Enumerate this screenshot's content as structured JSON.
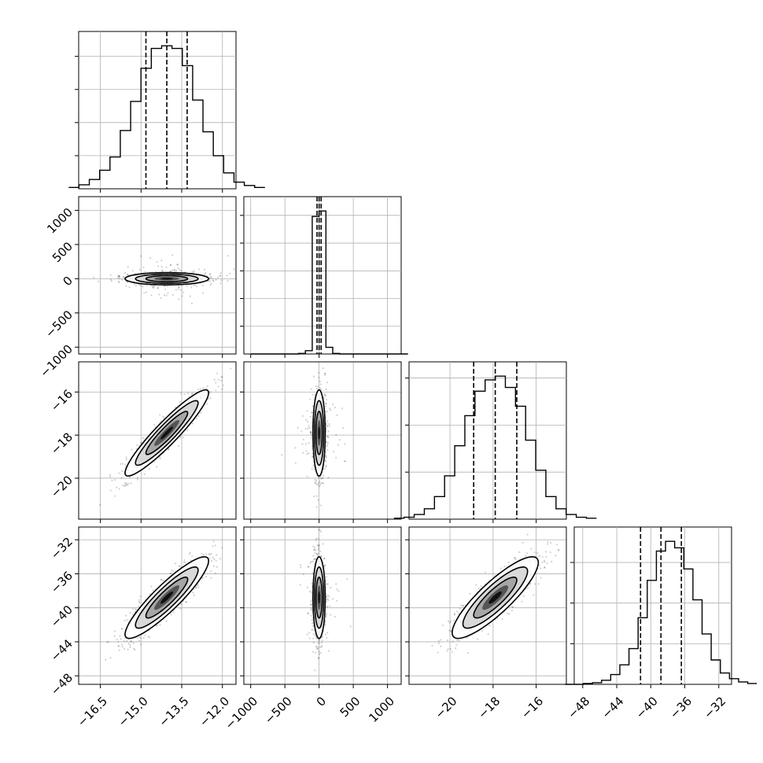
{
  "chart_data": {
    "type": "corner",
    "colors": {
      "points": "#000000",
      "contour_fills": [
        "#ffffff",
        "#d9d9d9",
        "#a6a6a6",
        "#555555",
        "#111111"
      ],
      "grid": "#b0b0b0"
    },
    "grid": true,
    "parameters": [
      {
        "range": [
          -17.3,
          -11.5
        ],
        "ticks": [
          -16.5,
          -15.0,
          -13.5,
          -12.0
        ],
        "tick_labels": [
          "−16.5",
          "−15.0",
          "−13.5",
          "−12.0"
        ],
        "quantiles": [
          -14.82,
          -14.05,
          -13.3
        ],
        "mean": -14.05,
        "sd": 0.77,
        "hist_counts": [
          2,
          6,
          14,
          28,
          48,
          88,
          132,
          182,
          212,
          216,
          212,
          186,
          134,
          86,
          50,
          24,
          10,
          5,
          2
        ]
      },
      {
        "range": [
          -1100,
          1200
        ],
        "ticks": [
          -1000,
          -500,
          0,
          500,
          1000
        ],
        "tick_labels": [
          "−1000",
          "−500",
          "0",
          "500",
          "1000"
        ],
        "quantiles": [
          -30,
          0,
          30
        ],
        "mean": 0,
        "sd": 45,
        "hist_counts": [
          0,
          0,
          0,
          0,
          0,
          0,
          0,
          1,
          6,
          248,
          258,
          12,
          1,
          0,
          0,
          0,
          0,
          0,
          0,
          0,
          0,
          0,
          0
        ]
      },
      {
        "range": [
          -21.9,
          -14.6
        ],
        "ticks": [
          -20,
          -18,
          -16
        ],
        "tick_labels": [
          "−20",
          "−18",
          "−16"
        ],
        "quantiles": [
          -18.9,
          -17.9,
          -16.9
        ],
        "mean": -17.9,
        "sd": 1.0,
        "hist_counts": [
          1,
          2,
          5,
          11,
          24,
          46,
          78,
          110,
          136,
          148,
          152,
          140,
          120,
          84,
          52,
          24,
          11,
          5,
          2,
          1
        ]
      },
      {
        "range": [
          -49,
          -30.5
        ],
        "ticks": [
          -48,
          -44,
          -40,
          -36,
          -32
        ],
        "tick_labels": [
          "−48",
          "−44",
          "−40",
          "−36",
          "−32"
        ],
        "quantiles": [
          -41.2,
          -38.8,
          -36.4
        ],
        "mean": -38.8,
        "sd": 2.4,
        "hist_counts": [
          0,
          0,
          1,
          2,
          5,
          12,
          24,
          44,
          82,
          128,
          164,
          176,
          168,
          142,
          104,
          62,
          30,
          14,
          7,
          3,
          1
        ]
      }
    ],
    "panels_2d": [
      {
        "x": 0,
        "y": 1,
        "correlation": 0.0,
        "y_ticks": [
          1000,
          500,
          0,
          -500,
          -1000
        ],
        "y_tick_labels": [
          "1000",
          "500",
          "0",
          "−500",
          "−1000"
        ]
      },
      {
        "x": 0,
        "y": 2,
        "correlation": 0.93,
        "y_ticks": [
          -16,
          -18,
          -20
        ],
        "y_tick_labels": [
          "−16",
          "−18",
          "−20"
        ]
      },
      {
        "x": 1,
        "y": 2,
        "correlation": 0.0
      },
      {
        "x": 0,
        "y": 3,
        "correlation": 0.9,
        "y_ticks": [
          -32,
          -36,
          -40,
          -44,
          -48
        ],
        "y_tick_labels": [
          "−32",
          "−36",
          "−40",
          "−44",
          "−48"
        ]
      },
      {
        "x": 1,
        "y": 3,
        "correlation": 0.0
      },
      {
        "x": 2,
        "y": 3,
        "correlation": 0.86
      }
    ]
  }
}
